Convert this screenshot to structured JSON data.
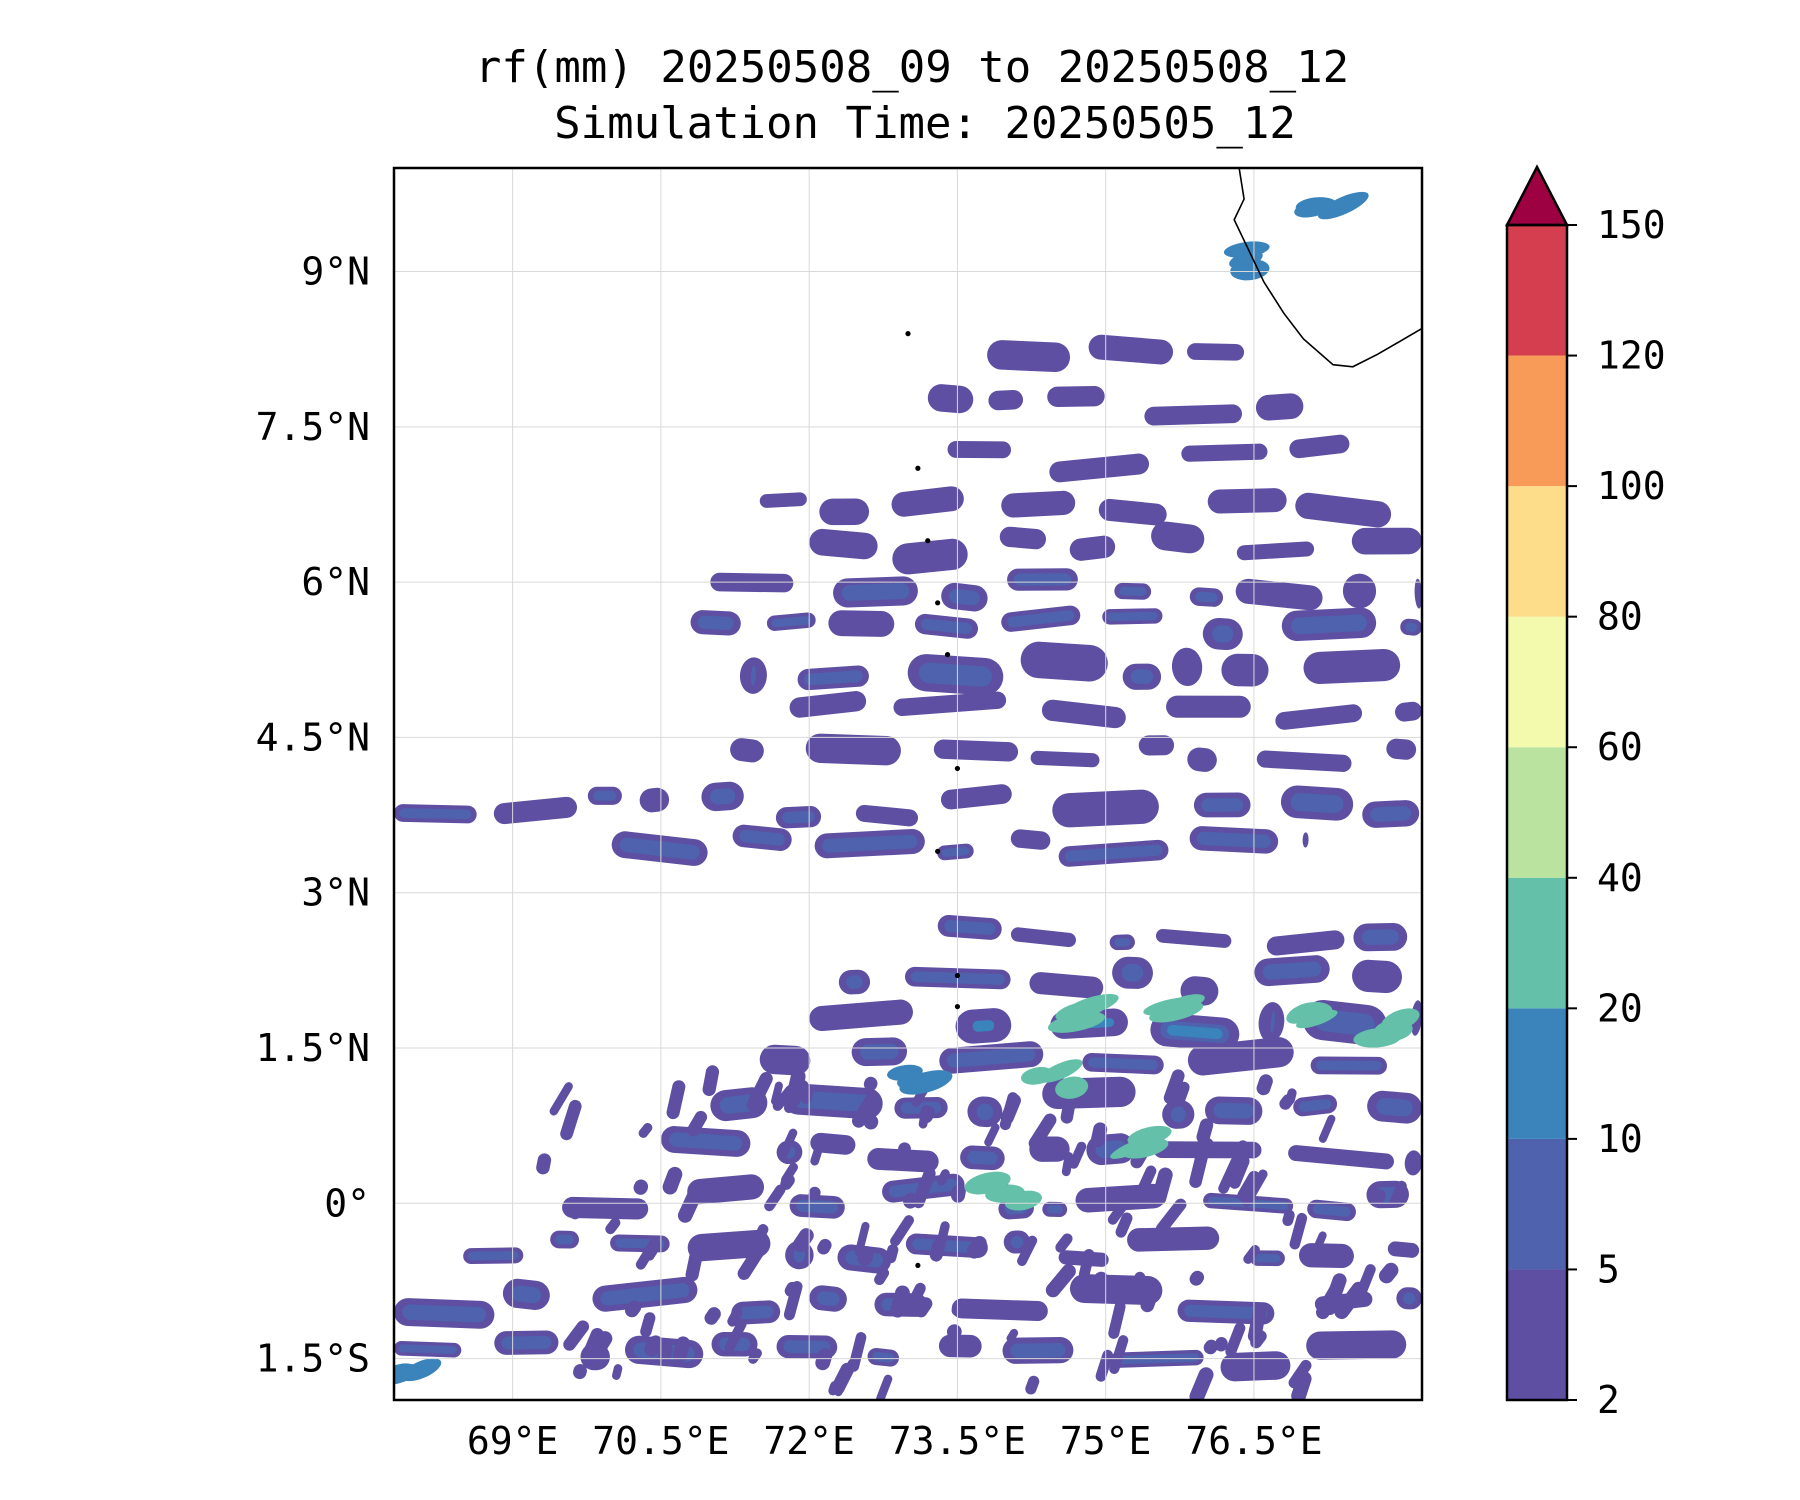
{
  "title": {
    "line1": "rf(mm) 20250508_09 to 20250508_12",
    "line2": "Simulation Time: 20250505_12"
  },
  "map": {
    "lon_range": [
      67.8,
      78.2
    ],
    "lat_range": [
      -1.9,
      10.0
    ],
    "lon_ticks": [
      {
        "value": 69.0,
        "label": "69°E"
      },
      {
        "value": 70.5,
        "label": "70.5°E"
      },
      {
        "value": 72.0,
        "label": "72°E"
      },
      {
        "value": 73.5,
        "label": "73.5°E"
      },
      {
        "value": 75.0,
        "label": "75°E"
      },
      {
        "value": 76.5,
        "label": "76.5°E"
      }
    ],
    "lat_ticks": [
      {
        "value": 9.0,
        "label": "9°N"
      },
      {
        "value": 7.5,
        "label": "7.5°N"
      },
      {
        "value": 6.0,
        "label": "6°N"
      },
      {
        "value": 4.5,
        "label": "4.5°N"
      },
      {
        "value": 3.0,
        "label": "3°N"
      },
      {
        "value": 1.5,
        "label": "1.5°N"
      },
      {
        "value": 0.0,
        "label": "0°"
      },
      {
        "value": -1.5,
        "label": "1.5°S"
      }
    ],
    "grid": true,
    "coastline_india": [
      [
        76.35,
        10.0
      ],
      [
        76.4,
        9.7
      ],
      [
        76.3,
        9.5
      ],
      [
        76.45,
        9.2
      ],
      [
        76.6,
        8.9
      ],
      [
        76.8,
        8.6
      ],
      [
        77.0,
        8.35
      ],
      [
        77.3,
        8.1
      ],
      [
        77.5,
        8.08
      ],
      [
        77.75,
        8.2
      ],
      [
        78.2,
        8.45
      ]
    ],
    "maldives_atolls": [
      {
        "lon": 73.0,
        "lat": 8.4
      },
      {
        "lon": 73.1,
        "lat": 7.1
      },
      {
        "lon": 73.2,
        "lat": 6.4
      },
      {
        "lon": 73.3,
        "lat": 5.8
      },
      {
        "lon": 73.4,
        "lat": 5.3
      },
      {
        "lon": 73.5,
        "lat": 4.2
      },
      {
        "lon": 73.3,
        "lat": 3.4
      },
      {
        "lon": 73.5,
        "lat": 2.2
      },
      {
        "lon": 73.5,
        "lat": 1.9
      },
      {
        "lon": 73.1,
        "lat": -0.6
      }
    ]
  },
  "colorbar": {
    "levels": [
      2,
      5,
      10,
      20,
      40,
      60,
      80,
      100,
      120,
      150
    ],
    "colors": [
      "#5e4fa2",
      "#4e62ad",
      "#3a84bb",
      "#65c0a9",
      "#bbe3a0",
      "#f3faad",
      "#fddd8a",
      "#f89a58",
      "#d53e4f"
    ],
    "extend_color": "#9e0142",
    "extend": "max"
  },
  "rainfall_bands": [
    {
      "lat": 8.15,
      "lon_start": 73.8,
      "lon_end": 76.4,
      "thickness": 0.22,
      "level": 0
    },
    {
      "lat": 7.7,
      "lon_start": 73.2,
      "lon_end": 77.0,
      "thickness": 0.22,
      "level": 0
    },
    {
      "lat": 7.2,
      "lon_start": 73.4,
      "lon_end": 77.6,
      "thickness": 0.2,
      "level": 0
    },
    {
      "lat": 6.75,
      "lon_start": 71.5,
      "lon_end": 78.2,
      "thickness": 0.22,
      "level": 0
    },
    {
      "lat": 6.35,
      "lon_start": 72.0,
      "lon_end": 78.2,
      "thickness": 0.24,
      "level": 0
    },
    {
      "lat": 5.95,
      "lon_start": 71.0,
      "lon_end": 78.2,
      "thickness": 0.26,
      "level": 1
    },
    {
      "lat": 5.55,
      "lon_start": 70.8,
      "lon_end": 78.2,
      "thickness": 0.24,
      "level": 1
    },
    {
      "lat": 5.15,
      "lon_start": 71.3,
      "lon_end": 78.2,
      "thickness": 0.3,
      "level": 1
    },
    {
      "lat": 4.75,
      "lon_start": 71.8,
      "lon_end": 78.2,
      "thickness": 0.22,
      "level": 0
    },
    {
      "lat": 4.3,
      "lon_start": 71.2,
      "lon_end": 78.2,
      "thickness": 0.22,
      "level": 0
    },
    {
      "lat": 3.85,
      "lon_start": 67.8,
      "lon_end": 78.2,
      "thickness": 0.26,
      "level": 1
    },
    {
      "lat": 3.45,
      "lon_start": 70.0,
      "lon_end": 77.0,
      "thickness": 0.22,
      "level": 1
    },
    {
      "lat": 2.55,
      "lon_start": 73.3,
      "lon_end": 78.2,
      "thickness": 0.22,
      "level": 1
    },
    {
      "lat": 2.15,
      "lon_start": 72.3,
      "lon_end": 78.2,
      "thickness": 0.26,
      "level": 1
    },
    {
      "lat": 1.75,
      "lon_start": 72.0,
      "lon_end": 78.2,
      "thickness": 0.3,
      "level": 2
    },
    {
      "lat": 1.35,
      "lon_start": 71.5,
      "lon_end": 78.0,
      "thickness": 0.26,
      "level": 1
    },
    {
      "lat": 0.95,
      "lon_start": 71.0,
      "lon_end": 78.2,
      "thickness": 0.24,
      "level": 1
    },
    {
      "lat": 0.5,
      "lon_start": 70.5,
      "lon_end": 78.2,
      "thickness": 0.24,
      "level": 1
    },
    {
      "lat": 0.05,
      "lon_start": 69.5,
      "lon_end": 78.2,
      "thickness": 0.22,
      "level": 1
    },
    {
      "lat": -0.45,
      "lon_start": 68.5,
      "lon_end": 78.2,
      "thickness": 0.22,
      "level": 1
    },
    {
      "lat": -0.95,
      "lon_start": 67.8,
      "lon_end": 78.2,
      "thickness": 0.22,
      "level": 1
    },
    {
      "lat": -1.45,
      "lon_start": 67.8,
      "lon_end": 78.2,
      "thickness": 0.22,
      "level": 1
    }
  ],
  "rainfall_cores": [
    {
      "lon": 74.9,
      "lat": 1.8,
      "level": 3
    },
    {
      "lon": 74.5,
      "lat": 1.2,
      "level": 3
    },
    {
      "lon": 75.8,
      "lat": 1.9,
      "level": 3
    },
    {
      "lon": 77.1,
      "lat": 1.8,
      "level": 3
    },
    {
      "lon": 77.8,
      "lat": 1.7,
      "level": 3
    },
    {
      "lon": 74.0,
      "lat": 0.1,
      "level": 3
    },
    {
      "lon": 75.3,
      "lat": 0.6,
      "level": 3
    },
    {
      "lon": 73.1,
      "lat": 1.2,
      "level": 2
    },
    {
      "lon": 76.3,
      "lat": 9.1,
      "level": 2
    },
    {
      "lon": 77.3,
      "lat": 9.7,
      "level": 2
    },
    {
      "lon": 68.0,
      "lat": -1.6,
      "level": 2
    }
  ]
}
